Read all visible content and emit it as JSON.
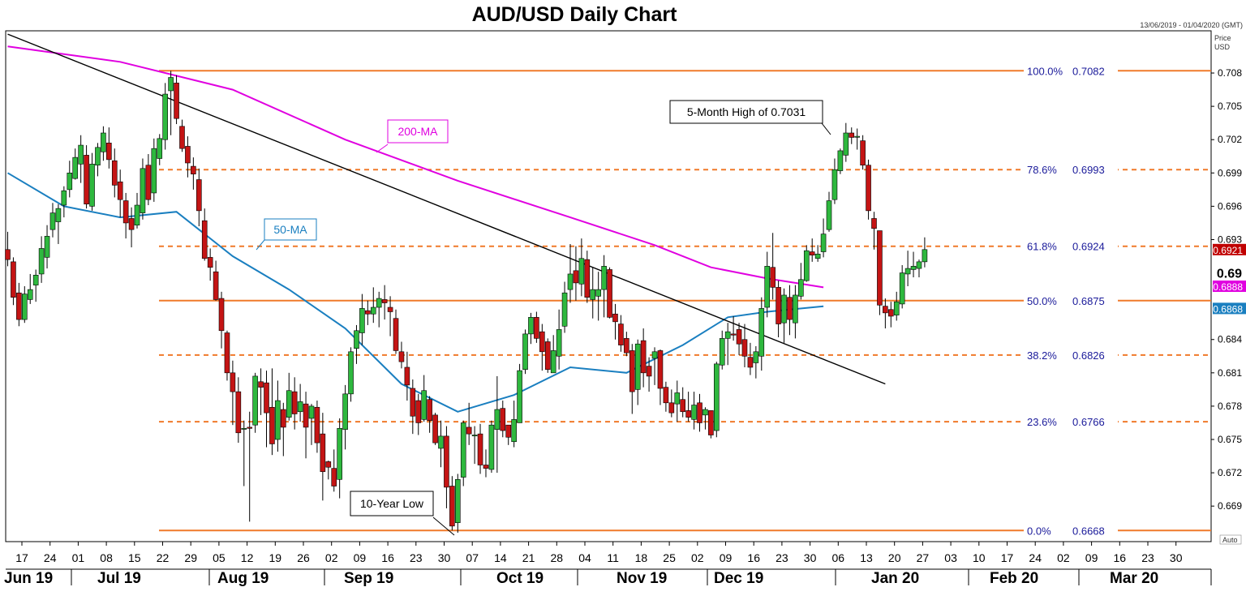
{
  "chart_data": {
    "type": "candlestick",
    "title": "AUD/USD Daily Chart",
    "date_range": "13/06/2019 - 01/04/2020 (GMT)",
    "price_axis_label": [
      "Price",
      "USD"
    ],
    "y_ticks": [
      "0.708",
      "0.705",
      "0.702",
      "0.699",
      "0.696",
      "0.693",
      "0.684",
      "0.681",
      "0.678",
      "0.675",
      "0.672",
      "0.669"
    ],
    "y_tick_bold": "0.69",
    "ylim": [
      0.6658,
      0.7118
    ],
    "auto_label": "Auto",
    "x_day_labels": [
      "17",
      "24",
      "01",
      "08",
      "15",
      "22",
      "29",
      "05",
      "12",
      "19",
      "26",
      "02",
      "09",
      "16",
      "23",
      "30",
      "07",
      "14",
      "21",
      "28",
      "04",
      "11",
      "18",
      "25",
      "02",
      "09",
      "16",
      "23",
      "30",
      "06",
      "13",
      "20",
      "27",
      "03",
      "10",
      "17",
      "24",
      "02",
      "09",
      "16",
      "23",
      "30"
    ],
    "x_month_labels": [
      "Jun 19",
      "Jul 19",
      "Aug 19",
      "Sep 19",
      "Oct 19",
      "Nov 19",
      "Dec 19",
      "Jan 20",
      "Feb 20",
      "Mar 20"
    ],
    "fibonacci_levels": [
      {
        "label": "100.0%",
        "value": "0.7082",
        "price": 0.7082,
        "style": "solid"
      },
      {
        "label": "78.6%",
        "value": "0.6993",
        "price": 0.6993,
        "style": "dashed"
      },
      {
        "label": "61.8%",
        "value": "0.6924",
        "price": 0.6924,
        "style": "dashed"
      },
      {
        "label": "50.0%",
        "value": "0.6875",
        "price": 0.6875,
        "style": "solid"
      },
      {
        "label": "38.2%",
        "value": "0.6826",
        "price": 0.6826,
        "style": "dashed"
      },
      {
        "label": "23.6%",
        "value": "0.6766",
        "price": 0.6766,
        "style": "dashed"
      },
      {
        "label": "0.0%",
        "value": "0.6668",
        "price": 0.6668,
        "style": "solid"
      }
    ],
    "price_tags": [
      {
        "label": "0.6921",
        "price": 0.6921,
        "color": "#c00000"
      },
      {
        "label": "0.6888",
        "price": 0.6888,
        "color": "#e000e0"
      },
      {
        "label": "0.6868",
        "price": 0.6868,
        "color": "#1a7fc0"
      }
    ],
    "annotations": {
      "high": "5-Month High of 0.7031",
      "low": "10-Year Low",
      "ma200": "200-MA",
      "ma50": "50-MA"
    },
    "trendline": {
      "start": [
        0,
        0.7115
      ],
      "end": [
        156,
        0.68
      ]
    },
    "ma200": [
      [
        0,
        0.7104
      ],
      [
        20,
        0.709
      ],
      [
        40,
        0.7065
      ],
      [
        60,
        0.702
      ],
      [
        80,
        0.6983
      ],
      [
        100,
        0.695
      ],
      [
        115,
        0.6925
      ],
      [
        125,
        0.6905
      ],
      [
        135,
        0.6895
      ],
      [
        145,
        0.6887
      ]
    ],
    "ma50": [
      [
        0,
        0.699
      ],
      [
        10,
        0.696
      ],
      [
        20,
        0.695
      ],
      [
        30,
        0.6955
      ],
      [
        40,
        0.6915
      ],
      [
        50,
        0.6885
      ],
      [
        60,
        0.685
      ],
      [
        70,
        0.68
      ],
      [
        80,
        0.6775
      ],
      [
        90,
        0.679
      ],
      [
        100,
        0.6815
      ],
      [
        110,
        0.681
      ],
      [
        120,
        0.6835
      ],
      [
        128,
        0.686
      ],
      [
        135,
        0.6865
      ],
      [
        145,
        0.687
      ]
    ],
    "candles": [
      [
        0.6921,
        0.6912,
        0.6937,
        0.6906
      ],
      [
        0.691,
        0.6878,
        0.6914,
        0.6871
      ],
      [
        0.6882,
        0.6858,
        0.6891,
        0.6852
      ],
      [
        0.6858,
        0.6881,
        0.6888,
        0.6855
      ],
      [
        0.6876,
        0.6885,
        0.6899,
        0.6872
      ],
      [
        0.6889,
        0.6898,
        0.6903,
        0.6874
      ],
      [
        0.6899,
        0.6922,
        0.6933,
        0.6891
      ],
      [
        0.6914,
        0.6933,
        0.6943,
        0.6904
      ],
      [
        0.6939,
        0.6954,
        0.6963,
        0.6932
      ],
      [
        0.6946,
        0.6958,
        0.6962,
        0.6926
      ],
      [
        0.6961,
        0.6974,
        0.6978,
        0.695
      ],
      [
        0.6975,
        0.699,
        0.7001,
        0.6968
      ],
      [
        0.6985,
        0.7004,
        0.7012,
        0.6984
      ],
      [
        0.6998,
        0.7015,
        0.7024,
        0.6981
      ],
      [
        0.7006,
        0.6962,
        0.7015,
        0.6958
      ],
      [
        0.696,
        0.6998,
        0.7008,
        0.6956
      ],
      [
        0.6997,
        0.7013,
        0.7017,
        0.6987
      ],
      [
        0.7009,
        0.7026,
        0.7032,
        0.7001
      ],
      [
        0.7017,
        0.7002,
        0.7031,
        0.6994
      ],
      [
        0.7001,
        0.6979,
        0.7012,
        0.6968
      ],
      [
        0.6982,
        0.6966,
        0.6993,
        0.695
      ],
      [
        0.6965,
        0.6945,
        0.6972,
        0.6931
      ],
      [
        0.6949,
        0.6939,
        0.6959,
        0.6923
      ],
      [
        0.6943,
        0.6961,
        0.6972,
        0.694
      ],
      [
        0.6954,
        0.6994,
        0.7003,
        0.6948
      ],
      [
        0.6997,
        0.6966,
        0.7007,
        0.6961
      ],
      [
        0.6972,
        0.7012,
        0.7021,
        0.6964
      ],
      [
        0.7003,
        0.7021,
        0.7025,
        0.6997
      ],
      [
        0.702,
        0.7061,
        0.7071,
        0.7011
      ],
      [
        0.7064,
        0.7076,
        0.7082,
        0.7024
      ],
      [
        0.7071,
        0.7039,
        0.7078,
        0.7034
      ],
      [
        0.7032,
        0.7012,
        0.7038,
        0.7009
      ],
      [
        0.7014,
        0.6999,
        0.7023,
        0.6986
      ],
      [
        0.6996,
        0.6989,
        0.7004,
        0.6975
      ],
      [
        0.6984,
        0.6956,
        0.6994,
        0.6942
      ],
      [
        0.6947,
        0.6913,
        0.6958,
        0.6911
      ],
      [
        0.6914,
        0.6905,
        0.6922,
        0.6893
      ],
      [
        0.6901,
        0.6876,
        0.6911,
        0.6875
      ],
      [
        0.6877,
        0.6848,
        0.6883,
        0.6832
      ],
      [
        0.6846,
        0.681,
        0.6848,
        0.6803
      ],
      [
        0.681,
        0.6793,
        0.6821,
        0.6763
      ],
      [
        0.6793,
        0.6756,
        0.6806,
        0.6747
      ],
      [
        0.676,
        0.676,
        0.6767,
        0.6708
      ],
      [
        0.6761,
        0.676,
        0.6775,
        0.6676
      ],
      [
        0.6763,
        0.6807,
        0.681,
        0.6756
      ],
      [
        0.6802,
        0.6797,
        0.6814,
        0.6772
      ],
      [
        0.6801,
        0.6774,
        0.6812,
        0.6743
      ],
      [
        0.6779,
        0.6746,
        0.6814,
        0.6736
      ],
      [
        0.675,
        0.6785,
        0.6803,
        0.6739
      ],
      [
        0.6777,
        0.6761,
        0.6783,
        0.6735
      ],
      [
        0.677,
        0.6794,
        0.681,
        0.6767
      ],
      [
        0.6793,
        0.6773,
        0.6806,
        0.6759
      ],
      [
        0.6775,
        0.6784,
        0.68,
        0.6766
      ],
      [
        0.6782,
        0.6761,
        0.6793,
        0.6733
      ],
      [
        0.6769,
        0.678,
        0.6782,
        0.6745
      ],
      [
        0.6779,
        0.6747,
        0.6785,
        0.6738
      ],
      [
        0.6755,
        0.6721,
        0.6774,
        0.6695
      ],
      [
        0.673,
        0.6725,
        0.6731,
        0.6714
      ],
      [
        0.6724,
        0.6708,
        0.6741,
        0.6703
      ],
      [
        0.6714,
        0.676,
        0.6769,
        0.6697
      ],
      [
        0.6759,
        0.6791,
        0.6799,
        0.6741
      ],
      [
        0.6791,
        0.6829,
        0.6833,
        0.6784
      ],
      [
        0.6832,
        0.6848,
        0.6853,
        0.6818
      ],
      [
        0.6846,
        0.6868,
        0.6881,
        0.6835
      ],
      [
        0.6866,
        0.6863,
        0.6875,
        0.6853
      ],
      [
        0.6863,
        0.6869,
        0.6887,
        0.6855
      ],
      [
        0.6869,
        0.6877,
        0.6883,
        0.6851
      ],
      [
        0.6876,
        0.6873,
        0.6889,
        0.6858
      ],
      [
        0.6869,
        0.6865,
        0.6879,
        0.6843
      ],
      [
        0.6859,
        0.683,
        0.6867,
        0.6827
      ],
      [
        0.6829,
        0.682,
        0.6838,
        0.6814
      ],
      [
        0.6815,
        0.6799,
        0.6829,
        0.6785
      ],
      [
        0.6796,
        0.6771,
        0.6804,
        0.6755
      ],
      [
        0.6785,
        0.6765,
        0.6791,
        0.6754
      ],
      [
        0.6768,
        0.6794,
        0.6808,
        0.6766
      ],
      [
        0.6786,
        0.6767,
        0.6789,
        0.6756
      ],
      [
        0.6772,
        0.6747,
        0.6774,
        0.6745
      ],
      [
        0.6742,
        0.6753,
        0.6767,
        0.6725
      ],
      [
        0.6753,
        0.6707,
        0.6762,
        0.6688
      ],
      [
        0.6708,
        0.6672,
        0.6717,
        0.6668
      ],
      [
        0.6675,
        0.6714,
        0.6719,
        0.6666
      ],
      [
        0.6716,
        0.6765,
        0.6767,
        0.6708
      ],
      [
        0.6761,
        0.6755,
        0.6783,
        0.6745
      ],
      [
        0.6754,
        0.6754,
        0.6762,
        0.6728
      ],
      [
        0.6755,
        0.6727,
        0.6764,
        0.6719
      ],
      [
        0.6727,
        0.6724,
        0.6741,
        0.6716
      ],
      [
        0.6723,
        0.6763,
        0.6767,
        0.672
      ],
      [
        0.6759,
        0.6777,
        0.6807,
        0.672
      ],
      [
        0.6778,
        0.6758,
        0.6785,
        0.6752
      ],
      [
        0.6763,
        0.6752,
        0.6763,
        0.6745
      ],
      [
        0.6748,
        0.6768,
        0.6785,
        0.6743
      ],
      [
        0.6765,
        0.6812,
        0.6818,
        0.6765
      ],
      [
        0.6813,
        0.6845,
        0.6849,
        0.6809
      ],
      [
        0.6845,
        0.686,
        0.6864,
        0.6836
      ],
      [
        0.686,
        0.6841,
        0.6865,
        0.6837
      ],
      [
        0.6847,
        0.6829,
        0.6854,
        0.6812
      ],
      [
        0.6838,
        0.6813,
        0.6841,
        0.681
      ],
      [
        0.681,
        0.683,
        0.6844,
        0.681
      ],
      [
        0.6825,
        0.6849,
        0.6867,
        0.6813
      ],
      [
        0.6852,
        0.6882,
        0.6892,
        0.6846
      ],
      [
        0.6885,
        0.6899,
        0.6926,
        0.6873
      ],
      [
        0.6902,
        0.6891,
        0.6924,
        0.6875
      ],
      [
        0.689,
        0.6913,
        0.6931,
        0.6879
      ],
      [
        0.6912,
        0.6878,
        0.692,
        0.6873
      ],
      [
        0.6876,
        0.6885,
        0.6905,
        0.6859
      ],
      [
        0.6879,
        0.6885,
        0.6901,
        0.6857
      ],
      [
        0.6885,
        0.6906,
        0.6916,
        0.686
      ],
      [
        0.6903,
        0.686,
        0.6905,
        0.6859
      ],
      [
        0.6863,
        0.6856,
        0.6872,
        0.684
      ],
      [
        0.6854,
        0.6835,
        0.6862,
        0.6829
      ],
      [
        0.6841,
        0.6828,
        0.6847,
        0.6825
      ],
      [
        0.683,
        0.6793,
        0.6836,
        0.6773
      ],
      [
        0.6795,
        0.6836,
        0.684,
        0.6781
      ],
      [
        0.6839,
        0.681,
        0.685,
        0.6797
      ],
      [
        0.6816,
        0.6807,
        0.6824,
        0.6793
      ],
      [
        0.6823,
        0.6829,
        0.6833,
        0.6799
      ],
      [
        0.683,
        0.6796,
        0.6831,
        0.6781
      ],
      [
        0.6797,
        0.6783,
        0.6802,
        0.6775
      ],
      [
        0.6783,
        0.6774,
        0.6795,
        0.677
      ],
      [
        0.6782,
        0.6792,
        0.6803,
        0.6766
      ],
      [
        0.6786,
        0.6775,
        0.6797,
        0.677
      ],
      [
        0.6776,
        0.677,
        0.6793,
        0.6766
      ],
      [
        0.6768,
        0.6781,
        0.6793,
        0.6759
      ],
      [
        0.6783,
        0.6765,
        0.6791,
        0.6757
      ],
      [
        0.6772,
        0.6777,
        0.6779,
        0.6759
      ],
      [
        0.6776,
        0.6754,
        0.6776,
        0.6751
      ],
      [
        0.6758,
        0.6818,
        0.682,
        0.6752
      ],
      [
        0.6817,
        0.6841,
        0.6848,
        0.6813
      ],
      [
        0.6841,
        0.6847,
        0.6855,
        0.6817
      ],
      [
        0.6845,
        0.6844,
        0.6861,
        0.6839
      ],
      [
        0.6849,
        0.6836,
        0.6855,
        0.6826
      ],
      [
        0.684,
        0.6825,
        0.6854,
        0.6815
      ],
      [
        0.6824,
        0.6815,
        0.6837,
        0.6808
      ],
      [
        0.6819,
        0.6829,
        0.6834,
        0.6805
      ],
      [
        0.6825,
        0.6868,
        0.6878,
        0.6812
      ],
      [
        0.6869,
        0.6906,
        0.6919,
        0.686
      ],
      [
        0.6905,
        0.6887,
        0.6936,
        0.6876
      ],
      [
        0.6887,
        0.6854,
        0.6893,
        0.6842
      ],
      [
        0.6855,
        0.688,
        0.6886,
        0.6837
      ],
      [
        0.6878,
        0.6858,
        0.6889,
        0.6844
      ],
      [
        0.6855,
        0.688,
        0.6889,
        0.6841
      ],
      [
        0.6879,
        0.6894,
        0.6909,
        0.6876
      ],
      [
        0.6893,
        0.692,
        0.6925,
        0.6892
      ],
      [
        0.6919,
        0.6916,
        0.6931,
        0.691
      ],
      [
        0.6913,
        0.6917,
        0.6925,
        0.691
      ],
      [
        0.6919,
        0.6935,
        0.6949,
        0.6914
      ],
      [
        0.6939,
        0.6965,
        0.6973,
        0.6937
      ],
      [
        0.6966,
        0.6993,
        0.7003,
        0.6962
      ],
      [
        0.6992,
        0.701,
        0.7012,
        0.6989
      ],
      [
        0.7006,
        0.7026,
        0.7035,
        0.7
      ],
      [
        0.7026,
        0.7022,
        0.7031,
        0.7016
      ],
      [
        0.7023,
        0.7023,
        0.703,
        0.7011
      ],
      [
        0.7019,
        0.6997,
        0.7024,
        0.6993
      ],
      [
        0.6997,
        0.6956,
        0.7002,
        0.6948
      ],
      [
        0.6949,
        0.694,
        0.6955,
        0.6921
      ],
      [
        0.6938,
        0.6871,
        0.6937,
        0.6862
      ],
      [
        0.687,
        0.6864,
        0.6877,
        0.685
      ],
      [
        0.6867,
        0.6861,
        0.6874,
        0.6851
      ],
      [
        0.6862,
        0.6874,
        0.6883,
        0.6857
      ],
      [
        0.6872,
        0.69,
        0.6907,
        0.6868
      ],
      [
        0.6899,
        0.6904,
        0.692,
        0.6888
      ],
      [
        0.6903,
        0.6906,
        0.6919,
        0.6896
      ],
      [
        0.6904,
        0.691,
        0.6912,
        0.6896
      ],
      [
        0.691,
        0.6921,
        0.6932,
        0.6905
      ]
    ]
  }
}
